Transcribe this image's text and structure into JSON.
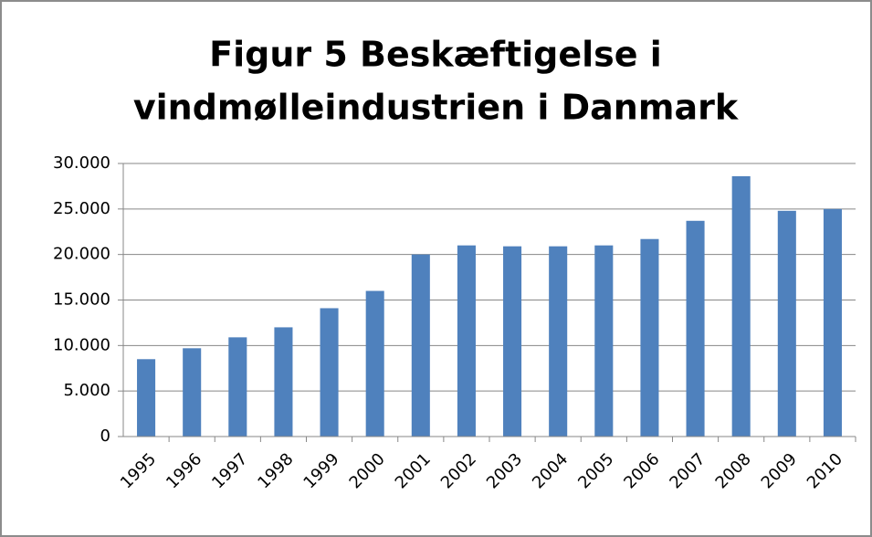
{
  "chart_data": {
    "type": "bar",
    "title": [
      "Figur 5 Beskæftigelse i",
      "vindmølleindustrien i Danmark"
    ],
    "categories": [
      "1995",
      "1996",
      "1997",
      "1998",
      "1999",
      "2000",
      "2001",
      "2002",
      "2003",
      "2004",
      "2005",
      "2006",
      "2007",
      "2008",
      "2009",
      "2010"
    ],
    "values": [
      8500,
      9700,
      10900,
      12000,
      14100,
      16000,
      20000,
      21000,
      20900,
      20900,
      21000,
      21700,
      23700,
      28600,
      24800,
      25000
    ],
    "color": "#4f81bd",
    "ylim": [
      0,
      30000
    ],
    "yticks": [
      0,
      {
        "value": 5000,
        "label": "5.000"
      },
      {
        "value": 10000,
        "label": "10.000"
      },
      {
        "value": 15000,
        "label": "15.000"
      },
      {
        "value": 20000,
        "label": "20.000"
      },
      {
        "value": 25000,
        "label": "25.000"
      },
      {
        "value": 30000,
        "label": "30.000"
      }
    ],
    "grid": true
  }
}
